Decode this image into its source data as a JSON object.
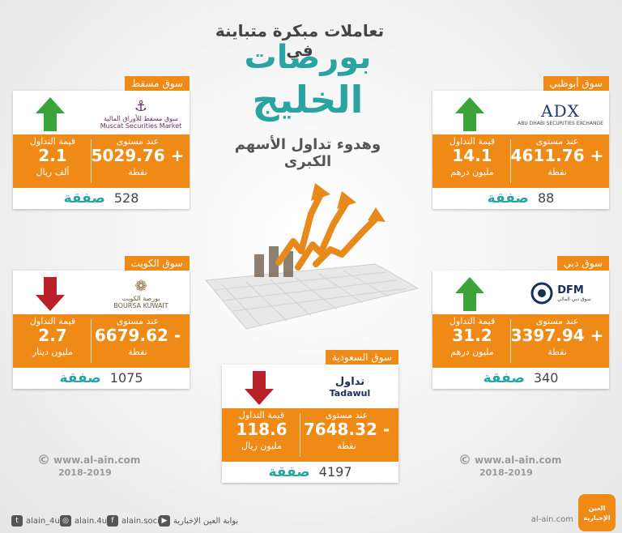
{
  "title": {
    "line1": "تعاملات مبكرة متباينة في",
    "line2": "بورصات",
    "line3": "الخليج",
    "line4": "وهدوء تداول الأسهم الكبرى"
  },
  "labels": {
    "level_label": "عند مستوى",
    "value_label": "قيمة التداول",
    "point_unit": "نقطة",
    "deals_word": "صفقة"
  },
  "markets": {
    "muscat": {
      "name": "سوق مسقط",
      "logo_ar": "سوق مسقط للأوراق المالية",
      "logo_en": "Muscat Securities Market",
      "direction": "up",
      "level": "5029.76 +",
      "value": "2.1",
      "value_unit": "ألف ريال",
      "deals": "528"
    },
    "abudhabi": {
      "name": "سوق أبوظبي",
      "logo_mark": "ADX",
      "logo_en": "ABU DHABI SECURITIES EXCHANGE",
      "direction": "up",
      "level": "4611.76 +",
      "value": "14.1",
      "value_unit": "مليون درهم",
      "deals": "88"
    },
    "kuwait": {
      "name": "سوق الكويت",
      "logo_ar": "بورصة الكويت",
      "logo_en": "BOURSA KUWAIT",
      "direction": "down",
      "level": "6679.62 -",
      "value": "2.7",
      "value_unit": "مليون دينار",
      "deals": "1075"
    },
    "dubai": {
      "name": "سوق دبي",
      "logo_mark": "DFM",
      "logo_ar": "سوق دبي المالي",
      "direction": "up",
      "level": "3397.94 +",
      "value": "31.2",
      "value_unit": "مليون درهم",
      "deals": "340"
    },
    "saudi": {
      "name": "سوق السعودية",
      "logo_ar": "تداول",
      "logo_en": "Tadawul",
      "direction": "down",
      "level": "7648.32 -",
      "value": "118.6",
      "value_unit": "مليون ريال",
      "deals": "4197"
    }
  },
  "watermark": {
    "url": "www.al-ain.com",
    "years": "2018-2019"
  },
  "footer": {
    "twitter": "alain_4u",
    "instagram": "alain.4u",
    "facebook": "alain.social",
    "youtube": "بوابة العين الإخبارية",
    "site": "al-ain.com",
    "brand": "العين الإخبارية"
  },
  "colors": {
    "orange": "#ef8a17",
    "teal": "#2aa3a3",
    "up_green": "#3aa33a",
    "down_red": "#b8202a"
  }
}
